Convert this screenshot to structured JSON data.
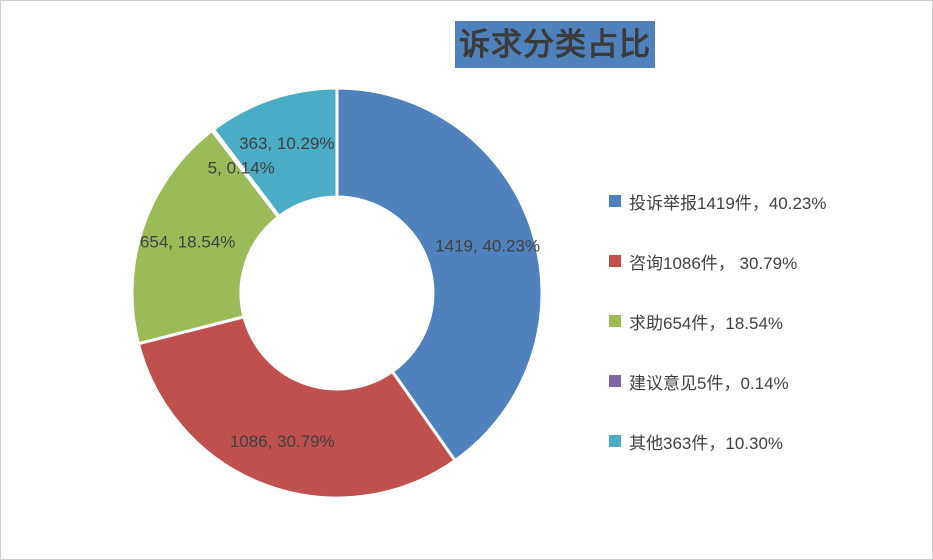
{
  "title": {
    "text": "诉求分类占比"
  },
  "chart_data": {
    "type": "pie",
    "subtype": "donut",
    "title": "诉求分类占比",
    "categories": [
      "投诉举报",
      "咨询",
      "求助",
      "建议意见",
      "其他"
    ],
    "values": [
      1419,
      1086,
      654,
      5,
      363
    ],
    "unit": "件",
    "percentages": [
      40.23,
      30.79,
      18.54,
      0.14,
      10.29
    ],
    "slice_labels": [
      "1419, 40.23%",
      "1086, 30.79%",
      "654, 18.54%",
      "5, 0.14%",
      "363, 10.29%"
    ],
    "colors": [
      "#4f81bd",
      "#c0504d",
      "#9bbb59",
      "#8064a2",
      "#4bacc6"
    ],
    "label_color": "#404040",
    "gap_color": "#ffffff",
    "start_angle_deg": 0,
    "direction": "clockwise",
    "hole_ratio": 0.47,
    "legend_position": "right"
  },
  "legend": {
    "items": [
      {
        "label": "投诉举报1419件，40.23%",
        "color": "#4f81bd"
      },
      {
        "label": "咨询1086件， 30.79%",
        "color": "#c0504d"
      },
      {
        "label": "求助654件，18.54%",
        "color": "#9bbb59"
      },
      {
        "label": "建议意见5件，0.14%",
        "color": "#8064a2"
      },
      {
        "label": "其他363件，10.30%",
        "color": "#4bacc6"
      }
    ]
  }
}
